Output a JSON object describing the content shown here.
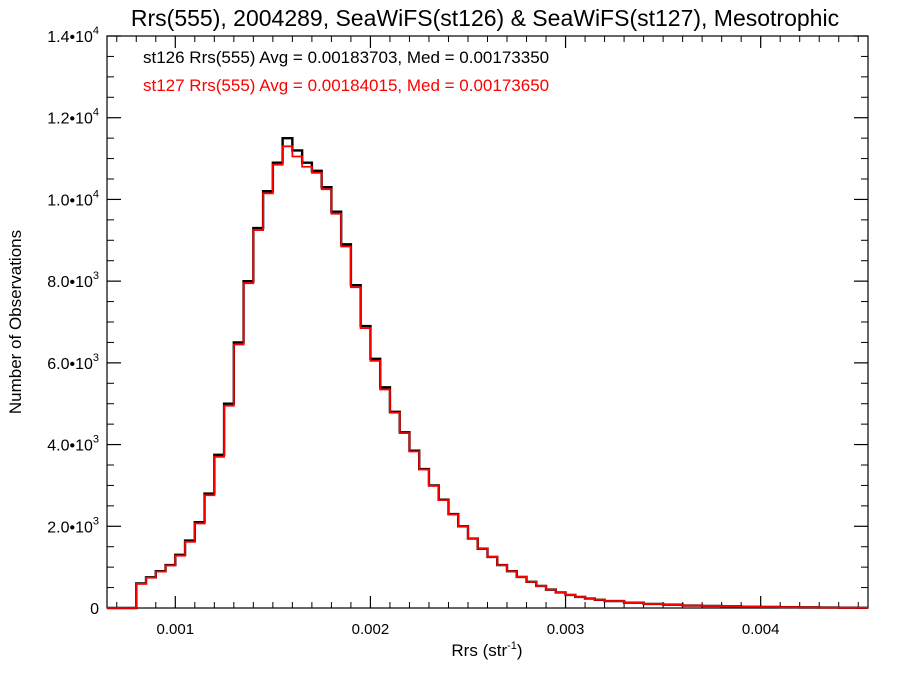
{
  "chart_data": {
    "type": "line",
    "title": "Rrs(555), 2004289, SeaWiFS(st126) & SeaWiFS(st127), Mesotrophic",
    "xlabel": {
      "base": "Rrs (str",
      "sup": "-1",
      "end": ")"
    },
    "ylabel": "Number of Observations",
    "xlim": [
      0.00065,
      0.00455
    ],
    "ylim": [
      0,
      14000
    ],
    "x_ticks": [
      {
        "value": 0.001,
        "label": "0.001"
      },
      {
        "value": 0.002,
        "label": "0.002"
      },
      {
        "value": 0.003,
        "label": "0.003"
      },
      {
        "value": 0.004,
        "label": "0.004"
      }
    ],
    "y_ticks": [
      {
        "value": 0,
        "label": "0",
        "mantissa": "",
        "exponent": ""
      },
      {
        "value": 2000,
        "label": "2.0•10",
        "mantissa": "2.0•10",
        "exponent": "3"
      },
      {
        "value": 4000,
        "label": "4.0•10",
        "mantissa": "4.0•10",
        "exponent": "3"
      },
      {
        "value": 6000,
        "label": "6.0•10",
        "mantissa": "6.0•10",
        "exponent": "3"
      },
      {
        "value": 8000,
        "label": "8.0•10",
        "mantissa": "8.0•10",
        "exponent": "3"
      },
      {
        "value": 10000,
        "label": "1.0•10",
        "mantissa": "1.0•10",
        "exponent": "4"
      },
      {
        "value": 12000,
        "label": "1.2•10",
        "mantissa": "1.2•10",
        "exponent": "4"
      },
      {
        "value": 14000,
        "label": "1.4•10",
        "mantissa": "1.4•10",
        "exponent": "4"
      }
    ],
    "annotations": [
      {
        "text": "st126 Rrs(555) Avg = 0.00183703, Med = 0.00173350",
        "color": "#000000"
      },
      {
        "text": "st127 Rrs(555) Avg = 0.00184015, Med = 0.00173650",
        "color": "#ff0000"
      }
    ],
    "grid": false,
    "x": [
      0.0008,
      0.00085,
      0.0009,
      0.00095,
      0.001,
      0.00105,
      0.0011,
      0.00115,
      0.0012,
      0.00125,
      0.0013,
      0.00135,
      0.0014,
      0.00145,
      0.0015,
      0.00155,
      0.0016,
      0.00165,
      0.0017,
      0.00175,
      0.0018,
      0.00185,
      0.0019,
      0.00195,
      0.002,
      0.00205,
      0.0021,
      0.00215,
      0.0022,
      0.00225,
      0.0023,
      0.00235,
      0.0024,
      0.00245,
      0.0025,
      0.00255,
      0.0026,
      0.00265,
      0.0027,
      0.00275,
      0.0028,
      0.00285,
      0.0029,
      0.00295,
      0.003,
      0.00305,
      0.0031,
      0.00315,
      0.0032,
      0.0033,
      0.0034,
      0.0035,
      0.0036,
      0.0037,
      0.0038,
      0.0039,
      0.004,
      0.0041,
      0.0042,
      0.0043,
      0.0044,
      0.0045
    ],
    "series": [
      {
        "name": "st126",
        "color": "#000000",
        "values": [
          600,
          750,
          900,
          1050,
          1300,
          1650,
          2100,
          2800,
          3750,
          5000,
          6500,
          8000,
          9300,
          10200,
          10900,
          11500,
          11200,
          10900,
          10700,
          10300,
          9700,
          8900,
          7900,
          6900,
          6100,
          5400,
          4800,
          4300,
          3850,
          3400,
          3000,
          2650,
          2300,
          2000,
          1700,
          1450,
          1250,
          1050,
          900,
          760,
          640,
          540,
          450,
          380,
          320,
          270,
          230,
          200,
          170,
          130,
          100,
          80,
          60,
          50,
          40,
          30,
          25,
          20,
          15,
          10,
          8,
          5
        ]
      },
      {
        "name": "st127",
        "color": "#ff0000",
        "values": [
          590,
          740,
          890,
          1040,
          1280,
          1620,
          2070,
          2760,
          3700,
          4950,
          6450,
          7950,
          9250,
          10150,
          10850,
          11300,
          11050,
          10800,
          10650,
          10250,
          9650,
          8850,
          7850,
          6850,
          6050,
          5350,
          4780,
          4280,
          3830,
          3390,
          2990,
          2640,
          2290,
          1990,
          1700,
          1450,
          1250,
          1050,
          900,
          760,
          640,
          540,
          450,
          380,
          320,
          270,
          230,
          200,
          170,
          130,
          100,
          80,
          60,
          50,
          40,
          30,
          25,
          20,
          15,
          10,
          8,
          5
        ]
      }
    ]
  }
}
